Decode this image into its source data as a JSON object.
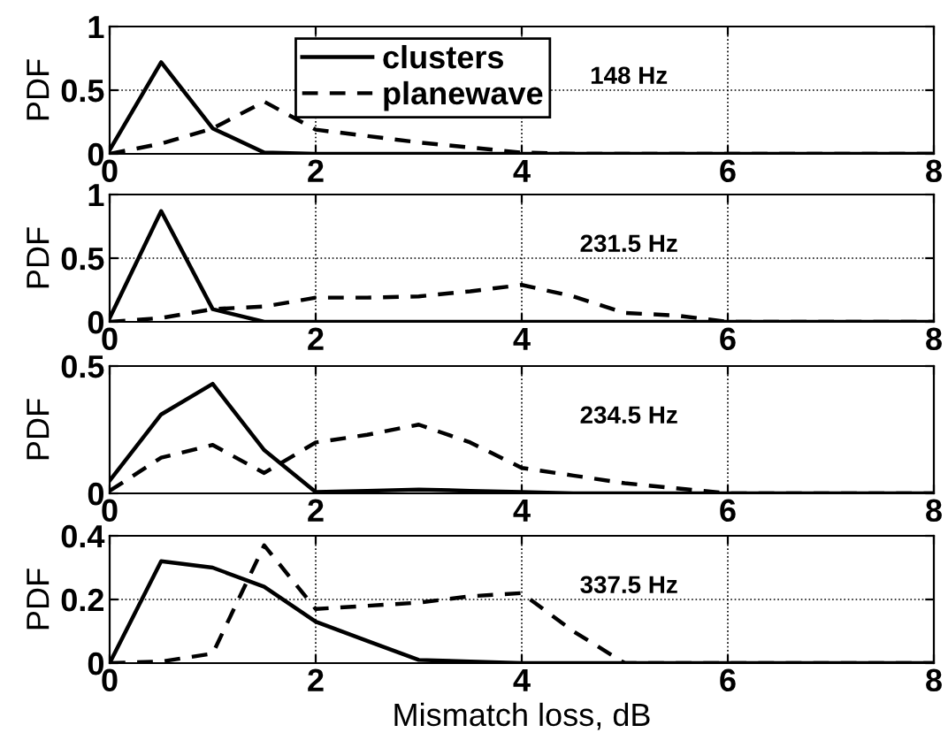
{
  "chart_data": [
    {
      "type": "line",
      "ylabel": "PDF",
      "annotations": [
        "148 Hz"
      ],
      "x": [
        0,
        0.5,
        1,
        1.5,
        2,
        2.5,
        3,
        3.5,
        4,
        4.5,
        5,
        5.5,
        6,
        6.5,
        7,
        7.5,
        8
      ],
      "xlim": [
        0,
        8
      ],
      "xticks": [
        0,
        2,
        4,
        6,
        8
      ],
      "ylim": [
        0,
        1
      ],
      "yticks": [
        0,
        0.5,
        1
      ],
      "grid": true,
      "legend": "top",
      "series": [
        {
          "name": "clusters",
          "color": "#000000",
          "line_style": "solid",
          "values": [
            0.03,
            0.72,
            0.2,
            0.01,
            0,
            0,
            0,
            0,
            0,
            0,
            0,
            0,
            0,
            0,
            0,
            0,
            0
          ]
        },
        {
          "name": "planewave",
          "color": "#000000",
          "line_style": "dashed",
          "values": [
            0,
            0.08,
            0.2,
            0.41,
            0.19,
            0.14,
            0.09,
            0.05,
            0.01,
            0,
            0,
            0,
            0,
            0,
            0,
            0,
            0
          ]
        }
      ]
    },
    {
      "type": "line",
      "ylabel": "PDF",
      "annotations": [
        "231.5 Hz"
      ],
      "x": [
        0,
        0.5,
        1,
        1.5,
        2,
        2.5,
        3,
        3.5,
        4,
        4.5,
        5,
        5.5,
        6,
        6.5,
        7,
        7.5,
        8
      ],
      "xlim": [
        0,
        8
      ],
      "xticks": [
        0,
        2,
        4,
        6,
        8
      ],
      "ylim": [
        0,
        1
      ],
      "yticks": [
        0,
        0.5,
        1
      ],
      "grid": true,
      "series": [
        {
          "color": "#000000",
          "line_style": "solid",
          "values": [
            0.03,
            0.87,
            0.1,
            0,
            0,
            0,
            0,
            0,
            0,
            0,
            0,
            0,
            0,
            0,
            0,
            0,
            0
          ]
        },
        {
          "color": "#000000",
          "line_style": "dashed",
          "values": [
            0,
            0.03,
            0.1,
            0.12,
            0.19,
            0.19,
            0.2,
            0.24,
            0.29,
            0.2,
            0.07,
            0.05,
            0,
            0,
            0,
            0,
            0
          ]
        }
      ]
    },
    {
      "type": "line",
      "ylabel": "PDF",
      "annotations": [
        "234.5 Hz"
      ],
      "x": [
        0,
        0.5,
        1,
        1.5,
        2,
        2.5,
        3,
        3.5,
        4,
        4.5,
        5,
        5.5,
        6,
        6.5,
        7,
        7.5,
        8
      ],
      "xlim": [
        0,
        8
      ],
      "xticks": [
        0,
        2,
        4,
        6,
        8
      ],
      "ylim": [
        0,
        0.5
      ],
      "yticks": [
        0,
        0.5
      ],
      "grid": true,
      "series": [
        {
          "color": "#000000",
          "line_style": "solid",
          "values": [
            0.05,
            0.31,
            0.43,
            0.17,
            0.005,
            0.01,
            0.015,
            0.01,
            0.005,
            0,
            0,
            0,
            0,
            0,
            0,
            0,
            0
          ]
        },
        {
          "color": "#000000",
          "line_style": "dashed",
          "values": [
            0.01,
            0.14,
            0.19,
            0.08,
            0.2,
            0.23,
            0.27,
            0.2,
            0.1,
            0.07,
            0.04,
            0.02,
            0,
            0,
            0,
            0,
            0
          ]
        }
      ]
    },
    {
      "type": "line",
      "ylabel": "PDF",
      "xlabel": "Mismatch loss, dB",
      "annotations": [
        "337.5 Hz"
      ],
      "x": [
        0,
        0.5,
        1,
        1.5,
        2,
        2.5,
        3,
        3.5,
        4,
        4.5,
        5,
        5.5,
        6,
        6.5,
        7,
        7.5,
        8
      ],
      "xlim": [
        0,
        8
      ],
      "xticks": [
        0,
        2,
        4,
        6,
        8
      ],
      "ylim": [
        0,
        0.4
      ],
      "yticks": [
        0,
        0.2,
        0.4
      ],
      "grid": true,
      "series": [
        {
          "color": "#000000",
          "line_style": "solid",
          "values": [
            0,
            0.32,
            0.3,
            0.24,
            0.13,
            0.07,
            0.01,
            0.005,
            0,
            0,
            0,
            0,
            0,
            0,
            0,
            0,
            0
          ]
        },
        {
          "color": "#000000",
          "line_style": "dashed",
          "values": [
            0,
            0.005,
            0.03,
            0.37,
            0.17,
            0.18,
            0.19,
            0.21,
            0.22,
            0.1,
            0,
            0,
            0,
            0,
            0,
            0,
            0
          ]
        }
      ]
    }
  ]
}
